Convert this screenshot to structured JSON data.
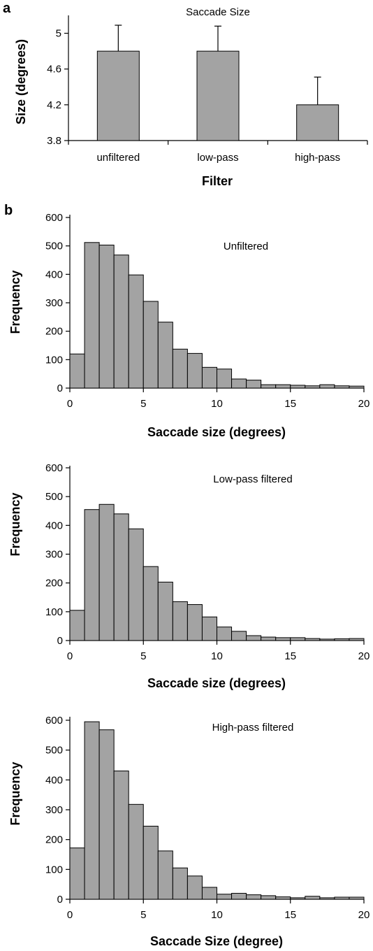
{
  "panel_labels": [
    "a",
    "b"
  ],
  "chart_data": [
    {
      "type": "bar",
      "title": "Saccade Size",
      "xlabel": "Filter",
      "ylabel": "Size (degrees)",
      "categories": [
        "unfiltered",
        "low-pass",
        "high-pass"
      ],
      "values": [
        4.8,
        4.8,
        4.2
      ],
      "error_upper": [
        0.29,
        0.28,
        0.31
      ],
      "ylim": [
        3.8,
        5.2
      ],
      "yticks": [
        3.8,
        4.2,
        4.6,
        5
      ],
      "ytick_labels": [
        "3.8",
        "4.2",
        "4.6",
        "5"
      ],
      "bar_color": "#a3a3a3",
      "grid": false
    },
    {
      "type": "bar",
      "subtype": "histogram",
      "title": "Unfiltered",
      "xlabel": "Saccade size (degrees)",
      "ylabel": "Frequency",
      "bin_width": 1,
      "x": [
        0,
        1,
        2,
        3,
        4,
        5,
        6,
        7,
        8,
        9,
        10,
        11,
        12,
        13,
        14,
        15,
        16,
        17,
        18,
        19
      ],
      "values": [
        120,
        512,
        503,
        468,
        398,
        305,
        232,
        137,
        122,
        73,
        67,
        32,
        28,
        12,
        12,
        10,
        8,
        12,
        8,
        7
      ],
      "xlim": [
        0,
        20
      ],
      "ylim": [
        0,
        600
      ],
      "xticks": [
        0,
        5,
        10,
        15,
        20
      ],
      "xtick_labels": [
        "0",
        "5",
        "10",
        "15",
        "20"
      ],
      "yticks": [
        0,
        100,
        200,
        300,
        400,
        500,
        600
      ],
      "ytick_labels": [
        "0",
        "100",
        "200",
        "300",
        "400",
        "500",
        "600"
      ],
      "bar_color": "#a3a3a3",
      "grid": false
    },
    {
      "type": "bar",
      "subtype": "histogram",
      "title": "Low-pass filtered",
      "xlabel": "Saccade size (degrees)",
      "ylabel": "Frequency",
      "bin_width": 1,
      "x": [
        0,
        1,
        2,
        3,
        4,
        5,
        6,
        7,
        8,
        9,
        10,
        11,
        12,
        13,
        14,
        15,
        16,
        17,
        18,
        19
      ],
      "values": [
        105,
        455,
        473,
        440,
        388,
        257,
        203,
        135,
        125,
        82,
        47,
        32,
        17,
        12,
        10,
        10,
        7,
        5,
        6,
        7
      ],
      "xlim": [
        0,
        20
      ],
      "ylim": [
        0,
        600
      ],
      "xticks": [
        0,
        5,
        10,
        15,
        20
      ],
      "xtick_labels": [
        "0",
        "5",
        "10",
        "15",
        "20"
      ],
      "yticks": [
        0,
        100,
        200,
        300,
        400,
        500,
        600
      ],
      "ytick_labels": [
        "0",
        "100",
        "200",
        "300",
        "400",
        "500",
        "600"
      ],
      "bar_color": "#a3a3a3",
      "grid": false
    },
    {
      "type": "bar",
      "subtype": "histogram",
      "title": "High-pass filtered",
      "xlabel": "Saccade Size (degree)",
      "ylabel": "Frequency",
      "bin_width": 1,
      "x": [
        0,
        1,
        2,
        3,
        4,
        5,
        6,
        7,
        8,
        9,
        10,
        11,
        12,
        13,
        14,
        15,
        16,
        17,
        18,
        19
      ],
      "values": [
        172,
        595,
        568,
        430,
        318,
        245,
        162,
        105,
        78,
        40,
        17,
        20,
        15,
        12,
        8,
        5,
        10,
        5,
        7,
        7
      ],
      "xlim": [
        0,
        20
      ],
      "ylim": [
        0,
        600
      ],
      "xticks": [
        0,
        5,
        10,
        15,
        20
      ],
      "xtick_labels": [
        "0",
        "5",
        "10",
        "15",
        "20"
      ],
      "yticks": [
        0,
        100,
        200,
        300,
        400,
        500,
        600
      ],
      "ytick_labels": [
        "0",
        "100",
        "200",
        "300",
        "400",
        "500",
        "600"
      ],
      "bar_color": "#a3a3a3",
      "grid": false
    }
  ]
}
